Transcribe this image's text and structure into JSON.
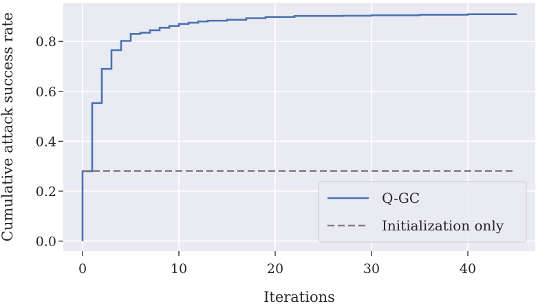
{
  "chart_data": {
    "type": "line",
    "title": "",
    "xlabel": "Iterations",
    "ylabel": "Cumulative attack success rate",
    "xlim": [
      -2.0,
      47.0
    ],
    "ylim": [
      -0.04,
      0.955
    ],
    "x_ticks": [
      0,
      10,
      20,
      30,
      40
    ],
    "y_ticks": [
      0.0,
      0.2,
      0.4,
      0.6,
      0.8
    ],
    "x_tick_labels": [
      "0",
      "10",
      "20",
      "30",
      "40"
    ],
    "y_tick_labels": [
      "0.0",
      "0.2",
      "0.4",
      "0.6",
      "0.8"
    ],
    "grid": true,
    "legend_position": "lower-right",
    "series": [
      {
        "name": "Q-GC",
        "style": "solid",
        "step": "post",
        "color": "#4c72b0",
        "x": [
          0,
          0,
          1,
          2,
          3,
          4,
          5,
          6,
          7,
          8,
          9,
          10,
          11,
          12,
          13,
          15,
          17,
          19,
          22,
          27,
          30,
          35,
          40,
          45
        ],
        "y": [
          0.0,
          0.28,
          0.553,
          0.69,
          0.765,
          0.802,
          0.83,
          0.835,
          0.845,
          0.855,
          0.862,
          0.87,
          0.875,
          0.88,
          0.883,
          0.887,
          0.893,
          0.898,
          0.902,
          0.903,
          0.905,
          0.907,
          0.909,
          0.912
        ]
      },
      {
        "name": "Initialization only",
        "style": "dashed",
        "color": "#808080",
        "x": [
          0,
          45
        ],
        "y": [
          0.281,
          0.281
        ]
      }
    ]
  }
}
